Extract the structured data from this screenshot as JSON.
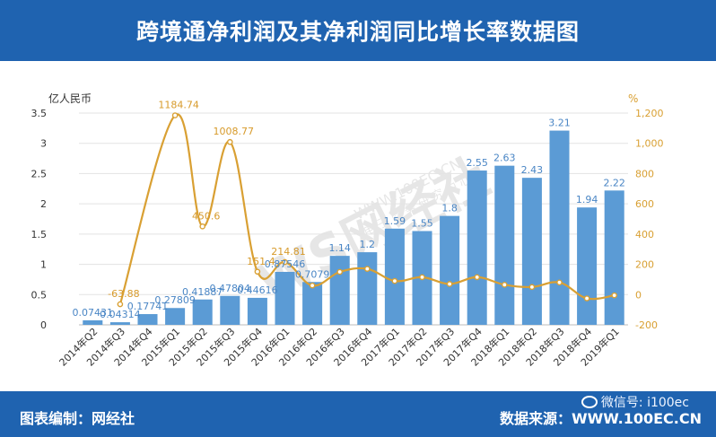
{
  "header": {
    "title": "跨境通净利润及其净利润同比增长率数据图"
  },
  "footer": {
    "left": "图表编制：网经社",
    "right": "数据来源：WWW.100EC.CN",
    "wechat": "微信号: i100ec"
  },
  "watermark": {
    "logo": "WS网经社",
    "url": "WWW.100EC.CN",
    "sub": "电 子 商 务 研 究 中 心"
  },
  "colors": {
    "header_bg": "#1f63b0",
    "bar": "#5b9bd5",
    "line": "#d9a033",
    "bar_label": "#4a86c5",
    "line_label": "#d79a2a"
  },
  "chart_data": {
    "type": "bar",
    "title": "",
    "left_axis_unit": "亿人民币",
    "right_axis_unit": "%",
    "ylim": [
      0,
      3.5
    ],
    "y_ticks": [
      "0",
      "0.5",
      "1",
      "1.5",
      "2",
      "2.5",
      "3",
      "3.5"
    ],
    "y2lim": [
      -200,
      1200
    ],
    "y2_ticks": [
      "-200",
      "0",
      "200",
      "400",
      "600",
      "800",
      "1,000",
      "1,200"
    ],
    "categories": [
      "2014年Q2",
      "2014年Q3",
      "2014年Q4",
      "2015年Q1",
      "2015年Q2",
      "2015年Q3",
      "2015年Q4",
      "2016年Q1",
      "2016年Q2",
      "2016年Q3",
      "2016年Q4",
      "2017年Q1",
      "2017年Q2",
      "2017年Q3",
      "2017年Q4",
      "2018年Q1",
      "2018年Q2",
      "2018年Q3",
      "2018年Q4",
      "2019年Q1"
    ],
    "series": [
      {
        "type": "bar",
        "axis": "left",
        "values": [
          0.07431,
          0.04314,
          0.17741,
          0.27809,
          0.41887,
          0.47804,
          0.44616,
          0.87546,
          0.7079,
          1.14,
          1.2,
          1.59,
          1.55,
          1.8,
          2.55,
          2.63,
          2.43,
          3.21,
          1.94,
          2.22
        ],
        "labels": [
          "0.07431",
          "0.04314",
          "0.17741",
          "0.27809",
          "0.41887",
          "0.47804",
          "0.44616",
          "0.87546",
          "0.7079",
          "1.14",
          "1.2",
          "1.59",
          "1.55",
          "1.8",
          "2.55",
          "2.63",
          "2.43",
          "3.21",
          "1.94",
          "2.22"
        ]
      },
      {
        "type": "line",
        "axis": "right",
        "values": [
          null,
          -63.88,
          null,
          1184.74,
          450.6,
          1008.77,
          151.4,
          214.81,
          60,
          150,
          170,
          90,
          115,
          70,
          115,
          65,
          50,
          80,
          -25,
          -5
        ],
        "labels": [
          "",
          "-63.88",
          "",
          "1184.74",
          "450.6",
          "1008.77",
          "151.4",
          "214.81",
          "",
          "",
          "",
          "",
          "",
          "",
          "",
          "",
          "",
          "",
          "",
          ""
        ]
      }
    ]
  }
}
